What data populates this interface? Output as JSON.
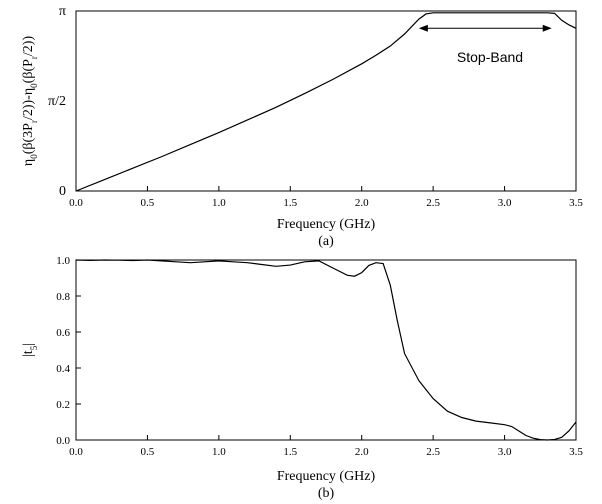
{
  "chart_data": [
    {
      "type": "line",
      "caption": "(a)",
      "xlabel": "Frequency (GHz)",
      "ylabel": "η0(β(3Pr/2))-η0(β(Pr/2))",
      "xlim": [
        0.0,
        3.5
      ],
      "ylim": [
        0,
        3.14159
      ],
      "x_ticks": [
        0.0,
        0.5,
        1.0,
        1.5,
        2.0,
        2.5,
        3.0,
        3.5
      ],
      "x_tick_labels": [
        "0.0",
        "0.5",
        "1.0",
        "1.5",
        "2.0",
        "2.5",
        "3.0",
        "3.5"
      ],
      "y_ticks": [
        0,
        1.5708,
        3.14159
      ],
      "y_tick_labels": [
        "0",
        "π/2",
        "π"
      ],
      "annotation": {
        "text": "Stop-Band",
        "x_from": 2.4,
        "x_to": 3.33,
        "y": 2.84
      },
      "series": [
        {
          "x": [
            0.0,
            0.2,
            0.4,
            0.6,
            0.8,
            1.0,
            1.2,
            1.4,
            1.6,
            1.8,
            2.0,
            2.1,
            2.2,
            2.3,
            2.35,
            2.4,
            2.45,
            2.5,
            2.8,
            3.1,
            3.3,
            3.35,
            3.4,
            3.45,
            3.5
          ],
          "y": [
            0.0,
            0.2,
            0.4,
            0.6,
            0.81,
            1.02,
            1.24,
            1.46,
            1.7,
            1.95,
            2.22,
            2.37,
            2.53,
            2.74,
            2.87,
            3.0,
            3.09,
            3.11,
            3.11,
            3.11,
            3.11,
            3.1,
            2.98,
            2.9,
            2.84
          ]
        }
      ]
    },
    {
      "type": "line",
      "caption": "(b)",
      "xlabel": "Frequency (GHz)",
      "ylabel": "|t5|",
      "xlim": [
        0.0,
        3.5
      ],
      "ylim": [
        0.0,
        1.0
      ],
      "x_ticks": [
        0.0,
        0.5,
        1.0,
        1.5,
        2.0,
        2.5,
        3.0,
        3.5
      ],
      "x_tick_labels": [
        "0.0",
        "0.5",
        "1.0",
        "1.5",
        "2.0",
        "2.5",
        "3.0",
        "3.5"
      ],
      "y_ticks": [
        0.0,
        0.2,
        0.4,
        0.6,
        0.8,
        1.0
      ],
      "y_tick_labels": [
        "0.0",
        "0.2",
        "0.4",
        "0.6",
        "0.8",
        "1.0"
      ],
      "series": [
        {
          "x": [
            0.0,
            0.1,
            0.2,
            0.3,
            0.4,
            0.5,
            0.6,
            0.7,
            0.8,
            0.9,
            1.0,
            1.1,
            1.2,
            1.3,
            1.4,
            1.5,
            1.6,
            1.7,
            1.8,
            1.9,
            1.95,
            2.0,
            2.05,
            2.1,
            2.15,
            2.2,
            2.25,
            2.3,
            2.4,
            2.5,
            2.6,
            2.7,
            2.8,
            2.9,
            3.0,
            3.05,
            3.1,
            3.15,
            3.2,
            3.25,
            3.3,
            3.35,
            3.4,
            3.45,
            3.5
          ],
          "y": [
            1.0,
            0.998,
            1.0,
            0.999,
            0.997,
            1.0,
            0.995,
            0.99,
            0.985,
            0.99,
            0.995,
            0.99,
            0.985,
            0.975,
            0.965,
            0.972,
            0.99,
            0.995,
            0.955,
            0.915,
            0.91,
            0.93,
            0.97,
            0.985,
            0.98,
            0.86,
            0.66,
            0.48,
            0.33,
            0.23,
            0.16,
            0.125,
            0.105,
            0.095,
            0.085,
            0.075,
            0.05,
            0.025,
            0.01,
            0.002,
            0.0,
            0.003,
            0.015,
            0.05,
            0.1
          ]
        }
      ]
    }
  ]
}
